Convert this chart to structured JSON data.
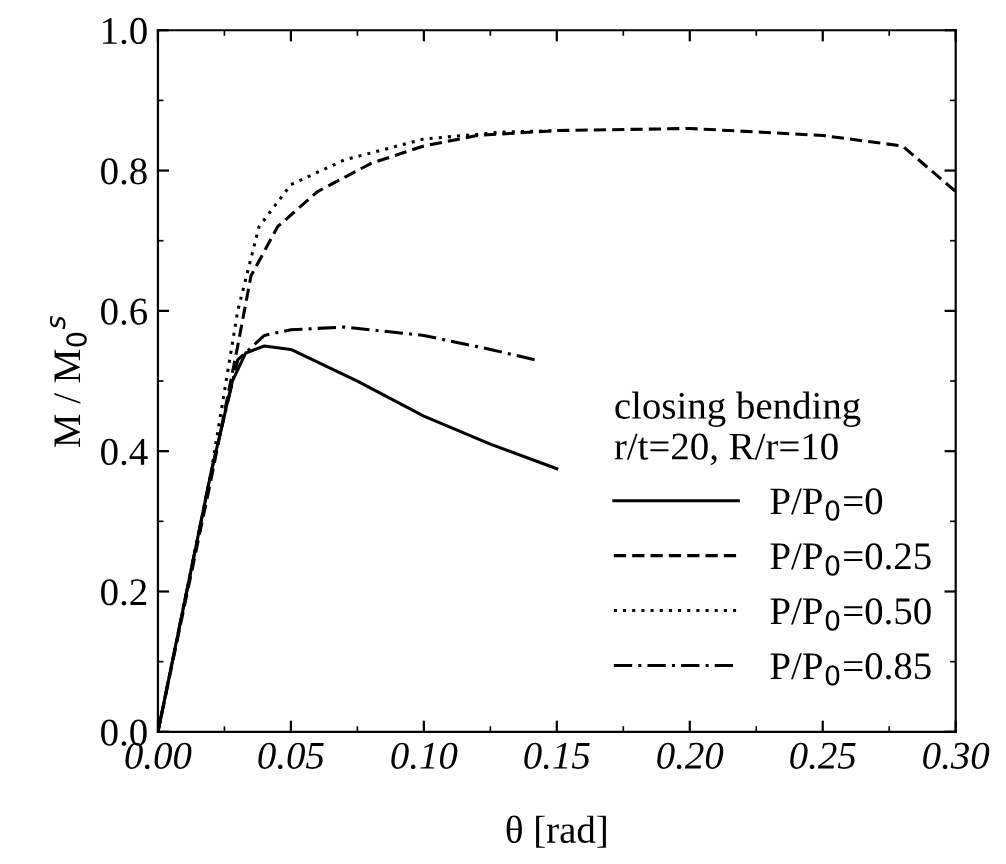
{
  "chart_data": {
    "type": "line",
    "xlabel": "θ [rad]",
    "ylabel": "M / M$_{0}$$^{s}$",
    "legend_title": "closing bending\nr/t=20, R/r=10",
    "xlim": [
      0.0,
      0.3
    ],
    "xticks": [
      {
        "value": 0.0,
        "label": "0.00"
      },
      0.05,
      {
        "value": 0.1,
        "label": "0.10"
      },
      0.15,
      {
        "value": 0.2,
        "label": "0.20"
      },
      0.25,
      {
        "value": 0.3,
        "label": "0.30"
      }
    ],
    "ylim": [
      0.0,
      1.0
    ],
    "yticks": [
      {
        "value": 0.0,
        "label": "0.0"
      },
      0.2,
      0.4,
      0.6,
      0.8,
      {
        "value": 1.0,
        "label": "1.0"
      }
    ],
    "grid": false,
    "legend": "bottom right",
    "marker": "none",
    "series": [
      {
        "name": "P/P$_{0}$=0",
        "color": "#000000",
        "line_style": "solid",
        "x": [
          0,
          0.02,
          0.028,
          0.033,
          0.04,
          0.05,
          0.075,
          0.1,
          0.125,
          0.15
        ],
        "values": [
          0,
          0.37,
          0.5,
          0.54,
          0.55,
          0.545,
          0.5,
          0.45,
          0.41,
          0.375
        ]
      },
      {
        "name": "P/P$_{0}$=0.25",
        "color": "#000000",
        "line_style": "dashed",
        "x": [
          0,
          0.02,
          0.03,
          0.035,
          0.045,
          0.06,
          0.08,
          0.1,
          0.12,
          0.15,
          0.2,
          0.25,
          0.28,
          0.3
        ],
        "values": [
          0,
          0.36,
          0.55,
          0.65,
          0.72,
          0.77,
          0.81,
          0.835,
          0.85,
          0.857,
          0.86,
          0.85,
          0.835,
          0.77
        ]
      },
      {
        "name": "P/P$_{0}$=0.50",
        "color": "#000000",
        "line_style": "dotted",
        "x": [
          0,
          0.02,
          0.03,
          0.038,
          0.05,
          0.07,
          0.1,
          0.13,
          0.15
        ],
        "values": [
          0,
          0.37,
          0.6,
          0.72,
          0.78,
          0.815,
          0.845,
          0.855,
          0.857
        ]
      },
      {
        "name": "P/P$_{0}$=0.85",
        "color": "#000000",
        "line_style": "dashdot",
        "x": [
          0,
          0.02,
          0.03,
          0.04,
          0.05,
          0.07,
          0.1,
          0.125,
          0.142
        ],
        "values": [
          0,
          0.37,
          0.53,
          0.565,
          0.573,
          0.577,
          0.565,
          0.545,
          0.53
        ]
      }
    ]
  }
}
